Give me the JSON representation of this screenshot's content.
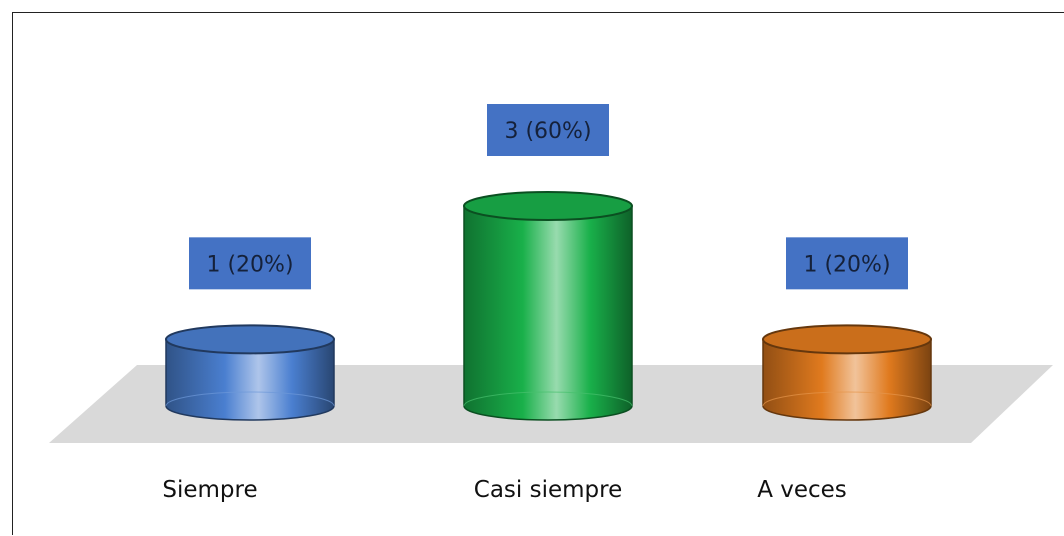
{
  "chart_data": {
    "type": "bar",
    "style": "3d-cylinder",
    "categories": [
      "Siempre",
      "Casi siempre",
      "A veces"
    ],
    "values": [
      1,
      3,
      1
    ],
    "percentages": [
      20,
      60,
      20
    ],
    "data_labels": [
      "1 (20%)",
      "3 (60%)",
      "1 (20%)"
    ],
    "colors": [
      "#4a7fd0",
      "#19b04a",
      "#e07a1e"
    ],
    "label_box_color": "#4472c4",
    "floor_color": "#d9d9d9",
    "title": "",
    "xlabel": "",
    "ylabel": "",
    "ylim": [
      0,
      3
    ],
    "grid": false,
    "legend": "none"
  }
}
